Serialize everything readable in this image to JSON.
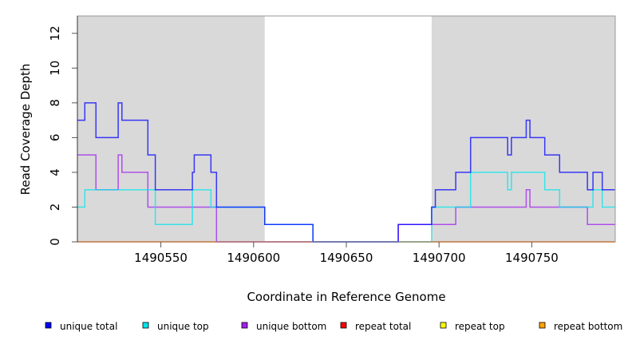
{
  "chart_data": {
    "type": "line",
    "step": true,
    "title": "",
    "xlabel": "Coordinate in Reference Genome",
    "ylabel": "Read Coverage Depth",
    "xlim": [
      1490505,
      1490795
    ],
    "ylim": [
      0,
      13
    ],
    "xticks": [
      1490550,
      1490600,
      1490650,
      1490700,
      1490750
    ],
    "xtick_labels": [
      "1490550",
      "1490600",
      "1490650",
      "1490700",
      "1490750"
    ],
    "yticks": [
      0,
      2,
      4,
      6,
      8,
      10,
      12
    ],
    "ytick_labels": [
      "0",
      "2",
      "4",
      "6",
      "8",
      "10",
      "12"
    ],
    "shaded_regions": [
      [
        1490505,
        1490606
      ],
      [
        1490696,
        1490795
      ]
    ],
    "shade_color": "#d9d9d9",
    "legend_position": "bottom",
    "series": [
      {
        "name": "unique total",
        "color": "#0000ff",
        "steps": [
          [
            1490505,
            7
          ],
          [
            1490509,
            8
          ],
          [
            1490515,
            6
          ],
          [
            1490527,
            8
          ],
          [
            1490529,
            7
          ],
          [
            1490543,
            5
          ],
          [
            1490547,
            3
          ],
          [
            1490567,
            4
          ],
          [
            1490568,
            5
          ],
          [
            1490577,
            4
          ],
          [
            1490580,
            2
          ],
          [
            1490606,
            1
          ],
          [
            1490632,
            0
          ],
          [
            1490678,
            1
          ],
          [
            1490696,
            2
          ],
          [
            1490698,
            3
          ],
          [
            1490709,
            4
          ],
          [
            1490717,
            6
          ],
          [
            1490737,
            5
          ],
          [
            1490739,
            6
          ],
          [
            1490747,
            7
          ],
          [
            1490749,
            6
          ],
          [
            1490757,
            5
          ],
          [
            1490765,
            4
          ],
          [
            1490780,
            3
          ],
          [
            1490783,
            4
          ],
          [
            1490788,
            3
          ]
        ]
      },
      {
        "name": "unique top",
        "color": "#00e5ee",
        "steps": [
          [
            1490505,
            2
          ],
          [
            1490509,
            3
          ],
          [
            1490547,
            1
          ],
          [
            1490567,
            3
          ],
          [
            1490577,
            2
          ],
          [
            1490606,
            1
          ],
          [
            1490632,
            0
          ],
          [
            1490696,
            2
          ],
          [
            1490717,
            4
          ],
          [
            1490737,
            3
          ],
          [
            1490739,
            4
          ],
          [
            1490757,
            3
          ],
          [
            1490765,
            2
          ],
          [
            1490783,
            3
          ],
          [
            1490788,
            2
          ]
        ]
      },
      {
        "name": "unique bottom",
        "color": "#a020f0",
        "steps": [
          [
            1490505,
            5
          ],
          [
            1490515,
            3
          ],
          [
            1490527,
            5
          ],
          [
            1490529,
            4
          ],
          [
            1490543,
            2
          ],
          [
            1490580,
            0
          ],
          [
            1490678,
            1
          ],
          [
            1490709,
            2
          ],
          [
            1490747,
            3
          ],
          [
            1490749,
            2
          ],
          [
            1490780,
            1
          ]
        ]
      },
      {
        "name": "repeat total",
        "color": "#ff0000",
        "steps": [
          [
            1490505,
            0
          ]
        ]
      },
      {
        "name": "repeat top",
        "color": "#ffff00",
        "steps": [
          [
            1490505,
            0
          ]
        ]
      },
      {
        "name": "repeat bottom",
        "color": "#ffa500",
        "steps": [
          [
            1490505,
            0
          ]
        ]
      }
    ]
  }
}
